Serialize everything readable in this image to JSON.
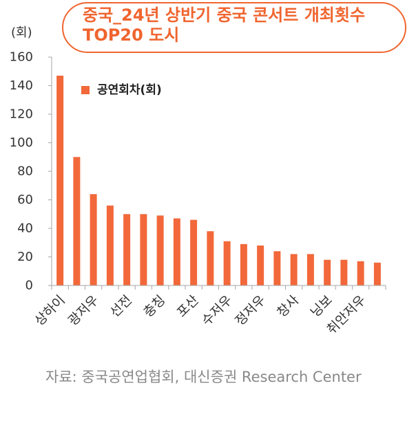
{
  "colors": {
    "accent": "#F2683A",
    "title": "#F0642E",
    "axis": "#A6A6A6",
    "text": "#333333",
    "muted": "#888888"
  },
  "source": "자료: 중국공연업협회, 대신증권 Research Center",
  "chart_data": {
    "type": "bar",
    "title": "중국_24년 상반기 중국 콘서트 개최횟수\nTOP20 도시",
    "ylabel": "(회)",
    "ylim": [
      0,
      160
    ],
    "yticks": [
      0,
      20,
      40,
      60,
      80,
      100,
      120,
      140,
      160
    ],
    "grid": false,
    "legend_position": "top-left",
    "categories": [
      "상하이",
      "",
      "광저우",
      "",
      "선전",
      "",
      "충칭",
      "",
      "포산",
      "",
      "수저우",
      "",
      "정저우",
      "",
      "창사",
      "",
      "닝보",
      "",
      "취안저우",
      ""
    ],
    "series": [
      {
        "name": "공연회차(회)",
        "values": [
          147,
          90,
          64,
          56,
          50,
          50,
          49,
          47,
          46,
          38,
          31,
          29,
          28,
          24,
          22,
          22,
          18,
          18,
          17,
          16
        ]
      }
    ]
  }
}
